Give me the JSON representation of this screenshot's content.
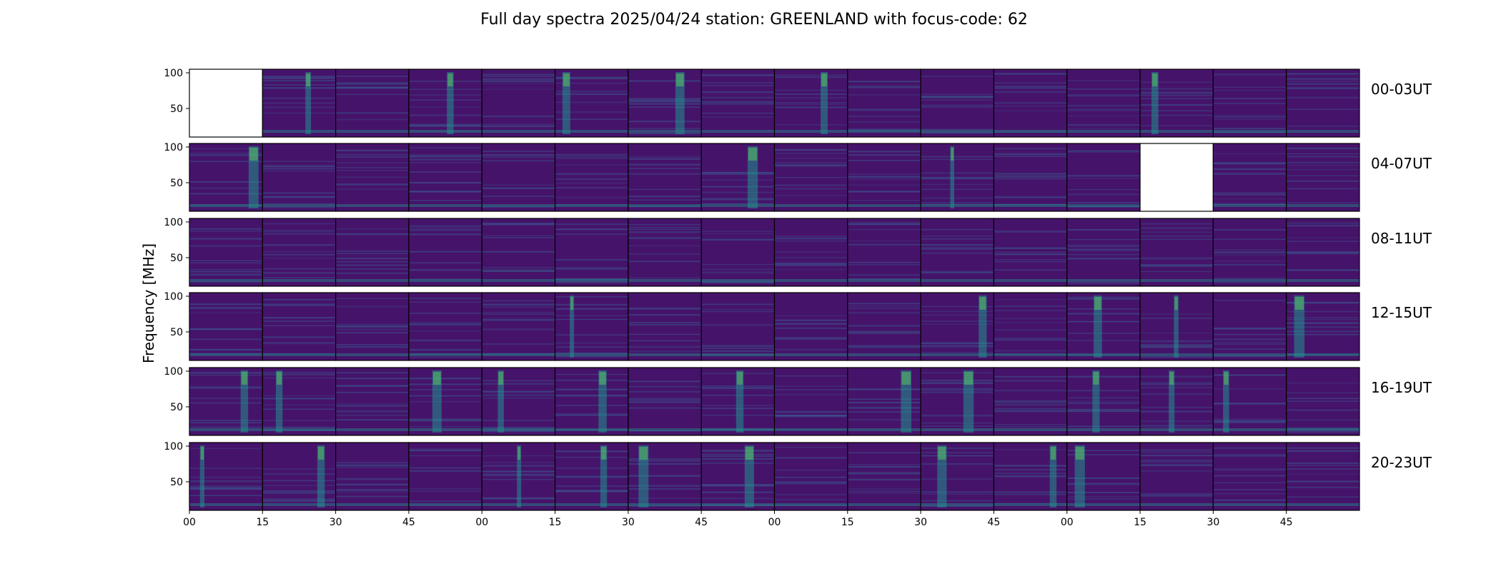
{
  "chart_data": {
    "type": "heatmap",
    "title": "Full day spectra 2025/04/24 station: GREENLAND with focus-code: 62",
    "ylabel": "Frequency [MHz]",
    "xlabel": "",
    "ylim": [
      10,
      105
    ],
    "y_ticks": [
      50,
      100
    ],
    "x_tick_labels": [
      "00",
      "15",
      "30",
      "45",
      "00",
      "15",
      "30",
      "45",
      "00",
      "15",
      "30",
      "45",
      "00",
      "15",
      "30",
      "45"
    ],
    "rows": [
      {
        "label": "00-03UT",
        "missing_panels": [
          0
        ],
        "burst_panels": [
          1,
          3,
          5,
          6,
          8,
          13
        ]
      },
      {
        "label": "04-07UT",
        "missing_panels": [
          13
        ],
        "burst_panels": [
          0,
          7,
          10
        ]
      },
      {
        "label": "08-11UT",
        "missing_panels": [],
        "burst_panels": []
      },
      {
        "label": "12-15UT",
        "missing_panels": [],
        "burst_panels": [
          5,
          10,
          12,
          13,
          15
        ]
      },
      {
        "label": "16-19UT",
        "missing_panels": [],
        "burst_panels": [
          0,
          1,
          3,
          4,
          5,
          7,
          9,
          10,
          12,
          13,
          14
        ]
      },
      {
        "label": "20-23UT",
        "missing_panels": [],
        "burst_panels": [
          0,
          1,
          4,
          5,
          6,
          7,
          10,
          11,
          12
        ]
      }
    ],
    "panels_per_row": 16,
    "colormap": "viridis",
    "colors": {
      "background": "#46136a",
      "mid": "#3b528b",
      "teal": "#21918c",
      "green": "#5ec962",
      "yellow": "#fde725"
    }
  }
}
